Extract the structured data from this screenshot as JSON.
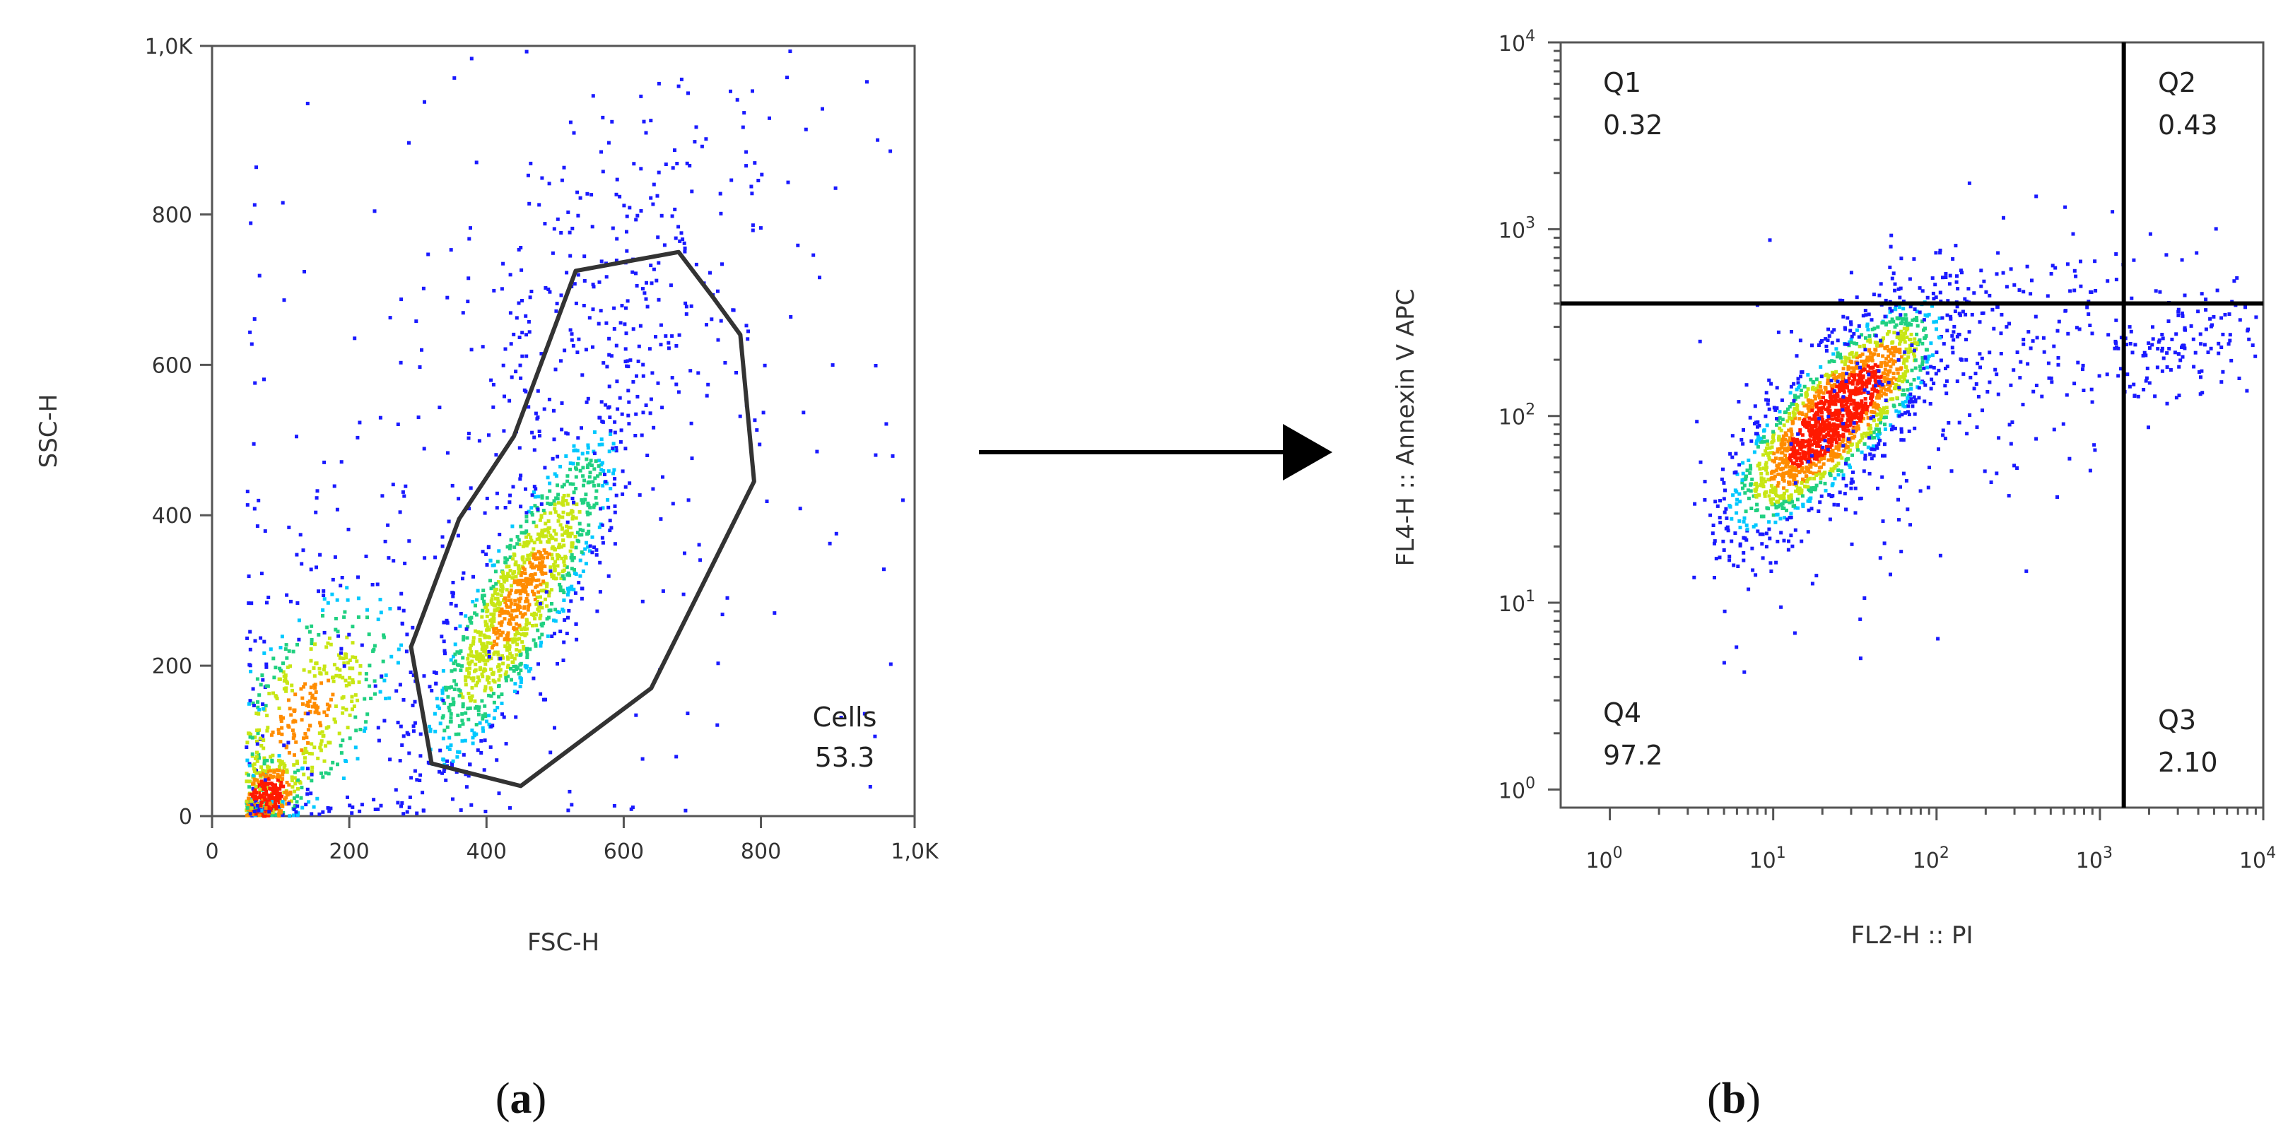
{
  "figure": {
    "panels": [
      {
        "label_open": "(",
        "label_letter": "a",
        "label_close": ")"
      },
      {
        "label_open": "(",
        "label_letter": "b",
        "label_close": ")"
      }
    ],
    "arrow_color": "#000000"
  },
  "chart_data": [
    {
      "type": "scatter",
      "style": "density scatter (pseudocolor)",
      "xlabel": "FSC-H",
      "ylabel": "SSC-H",
      "xlim": [
        0,
        1024
      ],
      "ylim": [
        0,
        1024
      ],
      "x_scale": "linear",
      "y_scale": "linear",
      "grid": false,
      "x_ticks": [
        0,
        200,
        400,
        600,
        800,
        1024
      ],
      "x_tick_labels": [
        "0",
        "200",
        "400",
        "600",
        "800",
        "1,0K"
      ],
      "y_ticks": [
        0,
        200,
        400,
        600,
        800,
        1024
      ],
      "y_tick_labels": [
        "0",
        "200",
        "400",
        "600",
        "800",
        "1,0K"
      ],
      "density_colors": [
        "#1a1aff",
        "#00c8ff",
        "#20d080",
        "#c8e614",
        "#ff8c00",
        "#ff1a00"
      ],
      "populations": [
        {
          "center": [
            450,
            290
          ],
          "spread": [
            75,
            120
          ],
          "corr": 0.85,
          "weight": 0.48
        },
        {
          "center": [
            130,
            130
          ],
          "spread": [
            80,
            95
          ],
          "corr": 0.6,
          "weight": 0.2
        },
        {
          "center": [
            80,
            25
          ],
          "spread": [
            25,
            25
          ],
          "corr": 0.3,
          "weight": 0.12
        },
        {
          "center": [
            600,
            720
          ],
          "spread": [
            130,
            140
          ],
          "corr": 0.5,
          "weight": 0.1
        },
        {
          "center": [
            450,
            450
          ],
          "spread": [
            290,
            270
          ],
          "corr": 0.1,
          "weight": 0.1
        }
      ],
      "gate": {
        "name": "Cells",
        "value": "53.3",
        "polygon": [
          [
            530,
            725
          ],
          [
            680,
            750
          ],
          [
            730,
            690
          ],
          [
            770,
            640
          ],
          [
            790,
            445
          ],
          [
            640,
            170
          ],
          [
            450,
            40
          ],
          [
            320,
            70
          ],
          [
            290,
            225
          ],
          [
            360,
            395
          ],
          [
            440,
            505
          ]
        ]
      }
    },
    {
      "type": "scatter",
      "style": "density scatter (pseudocolor)",
      "xlabel": "FL2-H :: PI",
      "ylabel": "FL4-H :: Annexin V APC",
      "xlim": [
        0.5,
        10000
      ],
      "ylim": [
        0.8,
        10000
      ],
      "x_scale": "log",
      "y_scale": "log",
      "grid": false,
      "x_ticks": [
        1,
        10,
        100,
        1000,
        10000
      ],
      "y_ticks": [
        1,
        10,
        100,
        1000,
        10000
      ],
      "tick_label_base": "10",
      "tick_exponents": [
        "0",
        "1",
        "2",
        "3",
        "4"
      ],
      "density_colors": [
        "#1a1aff",
        "#00c8ff",
        "#20d080",
        "#c8e614",
        "#ff8c00",
        "#ff1a00"
      ],
      "populations": [
        {
          "center_log": [
            1.38,
            2.0
          ],
          "spread_log": [
            0.32,
            0.3
          ],
          "corr": 0.8,
          "weight": 0.8
        },
        {
          "center_log": [
            2.3,
            2.3
          ],
          "spread_log": [
            0.7,
            0.35
          ],
          "corr": 0.3,
          "weight": 0.12
        },
        {
          "center_log": [
            3.55,
            2.4
          ],
          "spread_log": [
            0.25,
            0.16
          ],
          "corr": 0.2,
          "weight": 0.05
        },
        {
          "center_log": [
            1.5,
            1.5
          ],
          "spread_log": [
            0.5,
            0.5
          ],
          "corr": 0.4,
          "weight": 0.03
        }
      ],
      "quadrant_divider": {
        "x": 1400,
        "y": 400
      },
      "quadrants": [
        {
          "name": "Q1",
          "value": "0.32",
          "position": "top-left"
        },
        {
          "name": "Q2",
          "value": "0.43",
          "position": "top-right"
        },
        {
          "name": "Q3",
          "value": "2.10",
          "position": "bottom-right"
        },
        {
          "name": "Q4",
          "value": "97.2",
          "position": "bottom-left"
        }
      ]
    }
  ]
}
